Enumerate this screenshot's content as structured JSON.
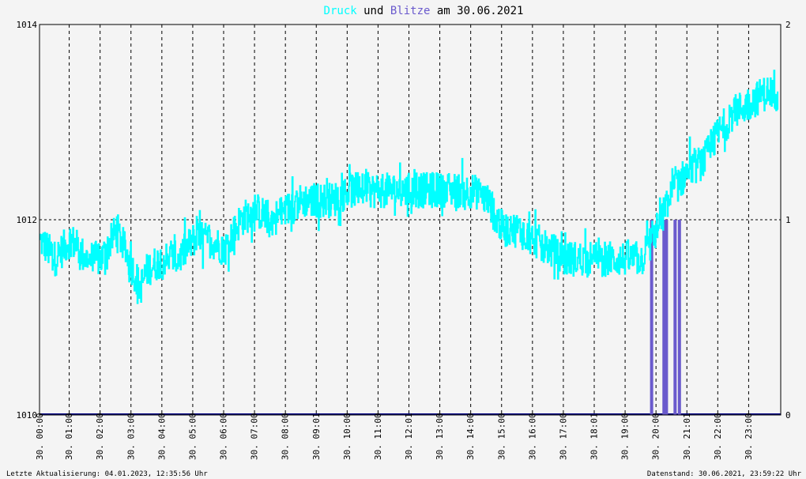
{
  "chart_data": {
    "type": "line",
    "title": {
      "part1": "Druck",
      "part2": " und ",
      "part3": "Blitze",
      "part4": " am 30.06.2021"
    },
    "y_left": {
      "min": 1010,
      "max": 1014,
      "ticks": [
        "1010",
        "1012",
        "1014"
      ]
    },
    "y_right": {
      "min": 0,
      "max": 2,
      "ticks": [
        "0",
        "1",
        "2"
      ]
    },
    "x_ticks": [
      "30. 00:00",
      "30. 01:00",
      "30. 02:00",
      "30. 03:00",
      "30. 04:00",
      "30. 05:00",
      "30. 06:00",
      "30. 07:00",
      "30. 08:00",
      "30. 09:01",
      "30. 10:00",
      "30. 11:00",
      "30. 12:01",
      "30. 13:00",
      "30. 14:00",
      "30. 15:00",
      "30. 16:00",
      "30. 17:00",
      "30. 18:01",
      "30. 19:00",
      "30. 20:00",
      "30. 21:01",
      "30. 22:00",
      "30. 23:00"
    ],
    "grid": true,
    "series": [
      {
        "name": "Druck",
        "axis": "left",
        "color": "#00ffff",
        "hours": [
          0,
          0.5,
          1,
          1.5,
          2,
          2.5,
          3,
          3.25,
          3.5,
          4,
          4.5,
          5,
          5.5,
          6,
          6.5,
          7,
          7.5,
          8,
          8.5,
          9,
          9.5,
          10,
          10.5,
          11,
          11.5,
          12,
          12.5,
          13,
          13.5,
          14,
          14.5,
          15,
          15.5,
          16,
          16.5,
          17,
          17.5,
          18,
          18.5,
          19,
          19.5,
          20,
          20.5,
          21,
          21.5,
          22,
          22.5,
          23,
          23.5,
          24
        ],
        "values": [
          1011.8,
          1011.6,
          1011.8,
          1011.6,
          1011.6,
          1011.9,
          1011.5,
          1011.3,
          1011.5,
          1011.6,
          1011.6,
          1011.8,
          1011.8,
          1011.7,
          1012.0,
          1012.1,
          1012.0,
          1012.1,
          1012.2,
          1012.2,
          1012.2,
          1012.3,
          1012.3,
          1012.3,
          1012.3,
          1012.3,
          1012.3,
          1012.3,
          1012.3,
          1012.3,
          1012.2,
          1011.9,
          1011.9,
          1011.8,
          1011.7,
          1011.6,
          1011.6,
          1011.6,
          1011.6,
          1011.6,
          1011.6,
          1011.9,
          1012.3,
          1012.5,
          1012.6,
          1012.9,
          1013.1,
          1013.2,
          1013.3,
          1013.3
        ]
      },
      {
        "name": "Blitze",
        "axis": "right",
        "color": "#6a5acd",
        "events": [
          {
            "hour": 19.82,
            "value": 1.0
          },
          {
            "hour": 20.22,
            "value": 1.0
          },
          {
            "hour": 20.3,
            "value": 1.0
          },
          {
            "hour": 20.58,
            "value": 1.0
          },
          {
            "hour": 20.72,
            "value": 1.0
          }
        ]
      }
    ]
  },
  "footer": {
    "left": "Letzte Aktualisierung: 04.01.2023, 12:35:56 Uhr",
    "right": "Datenstand: 30.06.2021, 23:59:22 Uhr"
  }
}
